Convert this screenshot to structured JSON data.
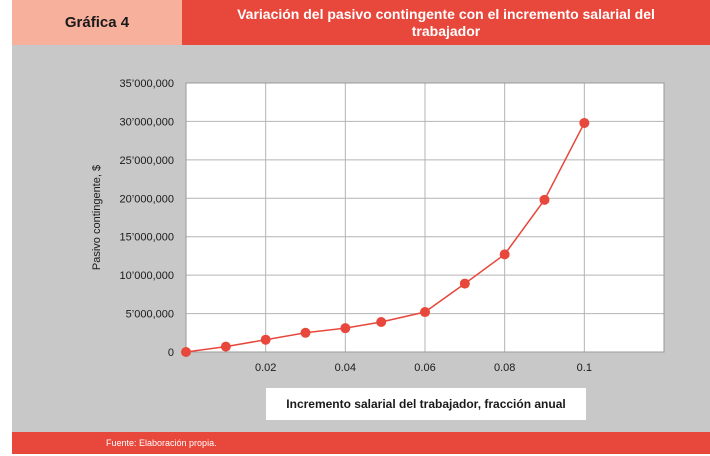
{
  "header": {
    "label": "Gráfica 4",
    "title": "Variación del pasivo contingente con el incremento salarial del trabajador"
  },
  "footer": {
    "source": "Fuente: Elaboración propia."
  },
  "colors": {
    "label_bg": "#f6b09c",
    "accent": "#e8473c",
    "panel_bg": "#c8c8c8",
    "plot_bg": "#ffffff"
  },
  "chart_data": {
    "type": "line",
    "xlabel": "Incremento salarial del trabajador, fracción anual",
    "ylabel": "Pasivo contingente, $",
    "xlim": [
      0,
      0.12
    ],
    "ylim": [
      0,
      35000000
    ],
    "x_ticks": [
      0.02,
      0.04,
      0.06,
      0.08,
      0.1
    ],
    "x_tick_labels": [
      "0.02",
      "0.04",
      "0.06",
      "0.08",
      "0.1"
    ],
    "y_ticks": [
      0,
      5000000,
      10000000,
      15000000,
      20000000,
      25000000,
      30000000,
      35000000
    ],
    "y_tick_labels": [
      "0",
      "5’000,000",
      "10’000,000",
      "15’000,000",
      "20’000,000",
      "25’000,000",
      "30’000,000",
      "35’000,000"
    ],
    "grid": true,
    "series": [
      {
        "color": "#e8473c",
        "x": [
          0,
          0.01,
          0.02,
          0.03,
          0.04,
          0.049,
          0.06,
          0.07,
          0.08,
          0.09,
          0.1
        ],
        "y": [
          0,
          700000,
          1600000,
          2500000,
          3100000,
          3900000,
          5200000,
          8900000,
          12700000,
          19800000,
          29800000
        ]
      }
    ]
  }
}
